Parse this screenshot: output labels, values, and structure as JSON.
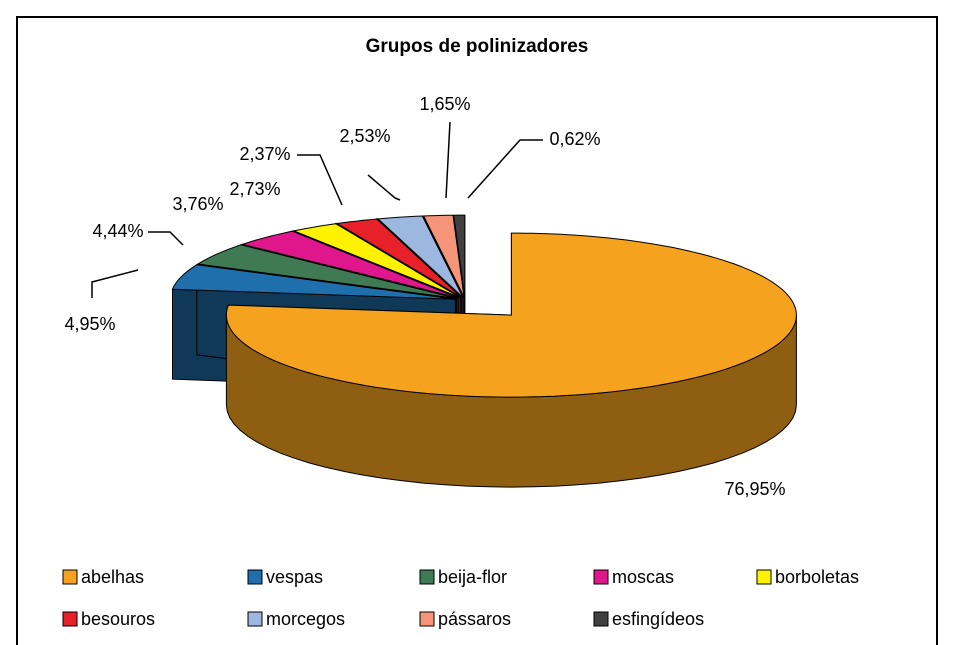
{
  "chart_data": {
    "type": "pie3d",
    "title": "Grupos de polinizadores",
    "categories": [
      "abelhas",
      "vespas",
      "beija-flor",
      "moscas",
      "borboletas",
      "besouros",
      "morcegos",
      "pássaros",
      "esfingídeos"
    ],
    "values": [
      76.95,
      4.95,
      4.44,
      3.76,
      2.73,
      2.37,
      2.53,
      1.65,
      0.62
    ],
    "value_labels": [
      "76,95%",
      "4,95%",
      "4,44%",
      "3,76%",
      "2,73%",
      "2,37%",
      "2,53%",
      "1,65%",
      "0,62%"
    ],
    "colors": [
      "#f5a21e",
      "#1f6fad",
      "#3f7a55",
      "#e0168c",
      "#fff200",
      "#e8202a",
      "#9db8e0",
      "#f4957a",
      "#404040"
    ]
  }
}
